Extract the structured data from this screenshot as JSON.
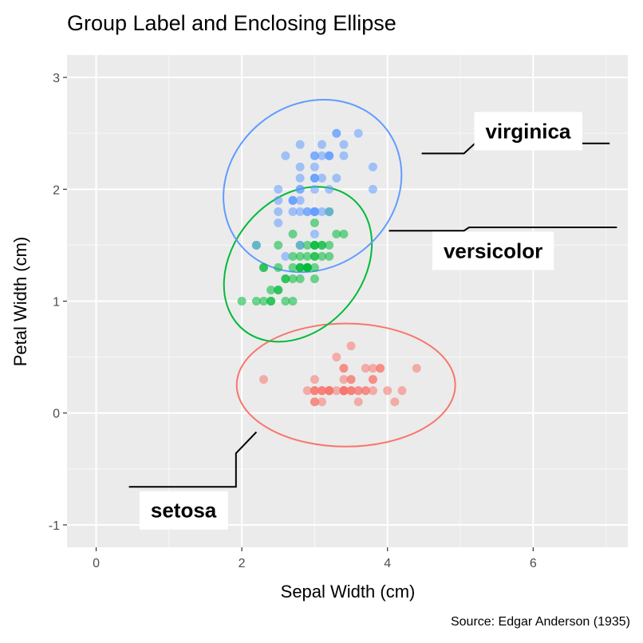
{
  "chart_data": {
    "type": "scatter",
    "title": "Group Label and Enclosing Ellipse",
    "xlabel": "Sepal Width (cm)",
    "ylabel": "Petal Width (cm)",
    "caption": "Source: Edgar Anderson (1935)",
    "xlim": [
      -0.4,
      7.3
    ],
    "ylim": [
      -1.2,
      3.2
    ],
    "xticks": [
      0,
      2,
      4,
      6
    ],
    "yticks": [
      -1,
      0,
      1,
      2,
      3
    ],
    "grid": true,
    "legend": "none",
    "series": [
      {
        "name": "setosa",
        "color": "#F8766D",
        "ellipse": {
          "cx": 3.43,
          "cy": 0.25,
          "rx": 1.5,
          "ry": 0.55,
          "angle": 0
        },
        "label_pos": [
          1.2,
          -0.87
        ],
        "leader": [
          [
            2.2,
            -0.17
          ],
          [
            1.92,
            -0.36
          ],
          [
            1.92,
            -0.66
          ],
          [
            0.45,
            -0.66
          ]
        ],
        "points": [
          [
            3.5,
            0.2
          ],
          [
            3.0,
            0.2
          ],
          [
            3.2,
            0.2
          ],
          [
            3.1,
            0.2
          ],
          [
            3.6,
            0.2
          ],
          [
            3.9,
            0.4
          ],
          [
            3.4,
            0.3
          ],
          [
            3.4,
            0.2
          ],
          [
            2.9,
            0.2
          ],
          [
            3.1,
            0.1
          ],
          [
            3.7,
            0.2
          ],
          [
            3.4,
            0.2
          ],
          [
            3.0,
            0.1
          ],
          [
            3.0,
            0.1
          ],
          [
            4.0,
            0.2
          ],
          [
            4.4,
            0.4
          ],
          [
            3.9,
            0.4
          ],
          [
            3.5,
            0.3
          ],
          [
            3.8,
            0.3
          ],
          [
            3.8,
            0.3
          ],
          [
            3.4,
            0.2
          ],
          [
            3.7,
            0.4
          ],
          [
            3.6,
            0.2
          ],
          [
            3.3,
            0.5
          ],
          [
            3.4,
            0.2
          ],
          [
            3.0,
            0.2
          ],
          [
            3.4,
            0.4
          ],
          [
            3.5,
            0.2
          ],
          [
            3.4,
            0.2
          ],
          [
            3.2,
            0.2
          ],
          [
            3.1,
            0.2
          ],
          [
            3.4,
            0.4
          ],
          [
            4.1,
            0.1
          ],
          [
            4.2,
            0.2
          ],
          [
            3.1,
            0.2
          ],
          [
            3.2,
            0.2
          ],
          [
            3.5,
            0.2
          ],
          [
            3.6,
            0.1
          ],
          [
            3.0,
            0.2
          ],
          [
            3.4,
            0.2
          ],
          [
            3.5,
            0.3
          ],
          [
            2.3,
            0.3
          ],
          [
            3.2,
            0.2
          ],
          [
            3.5,
            0.6
          ],
          [
            3.8,
            0.4
          ],
          [
            3.0,
            0.3
          ],
          [
            3.8,
            0.2
          ],
          [
            3.2,
            0.2
          ],
          [
            3.7,
            0.2
          ],
          [
            3.3,
            0.2
          ]
        ]
      },
      {
        "name": "versicolor",
        "color": "#00BA38",
        "ellipse": {
          "cx": 2.77,
          "cy": 1.33,
          "rx": 1.17,
          "ry": 0.58,
          "angle": -50
        },
        "label_pos": [
          5.45,
          1.45
        ],
        "leader": [
          [
            4.02,
            1.63
          ],
          [
            5.05,
            1.63
          ],
          [
            5.12,
            1.66
          ],
          [
            7.15,
            1.66
          ]
        ],
        "points": [
          [
            3.2,
            1.4
          ],
          [
            3.2,
            1.5
          ],
          [
            3.1,
            1.5
          ],
          [
            2.3,
            1.3
          ],
          [
            2.8,
            1.5
          ],
          [
            2.8,
            1.3
          ],
          [
            3.3,
            1.6
          ],
          [
            2.4,
            1.0
          ],
          [
            2.9,
            1.3
          ],
          [
            2.7,
            1.4
          ],
          [
            2.0,
            1.0
          ],
          [
            3.0,
            1.5
          ],
          [
            2.2,
            1.0
          ],
          [
            2.9,
            1.4
          ],
          [
            2.9,
            1.3
          ],
          [
            3.1,
            1.4
          ],
          [
            3.0,
            1.5
          ],
          [
            2.7,
            1.0
          ],
          [
            2.2,
            1.5
          ],
          [
            2.5,
            1.1
          ],
          [
            3.2,
            1.8
          ],
          [
            2.8,
            1.3
          ],
          [
            2.5,
            1.5
          ],
          [
            2.8,
            1.2
          ],
          [
            2.9,
            1.3
          ],
          [
            3.0,
            1.4
          ],
          [
            2.8,
            1.4
          ],
          [
            3.0,
            1.7
          ],
          [
            2.9,
            1.5
          ],
          [
            2.6,
            1.0
          ],
          [
            2.4,
            1.1
          ],
          [
            2.4,
            1.0
          ],
          [
            2.7,
            1.2
          ],
          [
            2.7,
            1.6
          ],
          [
            3.0,
            1.5
          ],
          [
            3.4,
            1.6
          ],
          [
            3.1,
            1.5
          ],
          [
            2.3,
            1.3
          ],
          [
            3.0,
            1.3
          ],
          [
            2.5,
            1.3
          ],
          [
            2.6,
            1.2
          ],
          [
            3.0,
            1.4
          ],
          [
            2.6,
            1.2
          ],
          [
            2.3,
            1.0
          ],
          [
            2.7,
            1.3
          ],
          [
            3.0,
            1.2
          ],
          [
            2.9,
            1.3
          ],
          [
            2.9,
            1.3
          ],
          [
            2.5,
            1.1
          ],
          [
            2.8,
            1.3
          ]
        ]
      },
      {
        "name": "virginica",
        "color": "#619CFF",
        "ellipse": {
          "cx": 2.97,
          "cy": 2.03,
          "rx": 1.28,
          "ry": 0.73,
          "angle": -38
        },
        "label_pos": [
          5.93,
          2.52
        ],
        "leader": [
          [
            4.47,
            2.32
          ],
          [
            5.05,
            2.32
          ],
          [
            5.2,
            2.41
          ],
          [
            7.05,
            2.41
          ]
        ],
        "points": [
          [
            3.3,
            2.5
          ],
          [
            2.7,
            1.9
          ],
          [
            3.0,
            2.1
          ],
          [
            2.9,
            1.8
          ],
          [
            3.0,
            2.2
          ],
          [
            3.0,
            2.1
          ],
          [
            2.5,
            1.7
          ],
          [
            2.9,
            1.8
          ],
          [
            2.5,
            1.8
          ],
          [
            3.6,
            2.5
          ],
          [
            3.2,
            2.0
          ],
          [
            2.7,
            1.9
          ],
          [
            3.0,
            2.1
          ],
          [
            2.5,
            2.0
          ],
          [
            2.8,
            2.4
          ],
          [
            3.2,
            2.3
          ],
          [
            3.0,
            1.8
          ],
          [
            3.8,
            2.2
          ],
          [
            2.6,
            2.3
          ],
          [
            2.2,
            1.5
          ],
          [
            3.2,
            2.3
          ],
          [
            2.8,
            2.0
          ],
          [
            2.8,
            2.0
          ],
          [
            2.7,
            1.8
          ],
          [
            3.3,
            2.1
          ],
          [
            3.2,
            1.8
          ],
          [
            2.8,
            1.8
          ],
          [
            3.0,
            1.8
          ],
          [
            2.8,
            2.1
          ],
          [
            3.0,
            1.6
          ],
          [
            2.8,
            1.9
          ],
          [
            3.8,
            2.0
          ],
          [
            2.8,
            2.2
          ],
          [
            2.8,
            1.5
          ],
          [
            2.6,
            1.4
          ],
          [
            3.0,
            2.3
          ],
          [
            3.4,
            2.4
          ],
          [
            3.1,
            1.8
          ],
          [
            3.0,
            1.8
          ],
          [
            3.1,
            2.1
          ],
          [
            3.1,
            2.4
          ],
          [
            3.1,
            2.3
          ],
          [
            2.7,
            1.9
          ],
          [
            3.2,
            2.3
          ],
          [
            3.3,
            2.5
          ],
          [
            3.0,
            2.3
          ],
          [
            2.5,
            1.9
          ],
          [
            3.0,
            2.0
          ],
          [
            3.4,
            2.3
          ],
          [
            3.0,
            1.8
          ]
        ]
      }
    ]
  }
}
